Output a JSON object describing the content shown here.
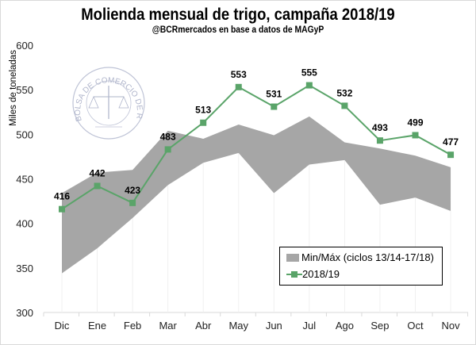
{
  "title": "Molienda mensual de trigo, campaña 2018/19",
  "subtitle": "@BCRmercados en base a datos de MAGyP",
  "logo_text": "BOLSA DE COMERCIO DE ROSARIO",
  "colors": {
    "band": "#a6a6a6",
    "line": "#5aa469",
    "marker": "#5aa469"
  },
  "chart_data": {
    "type": "line",
    "title": "Molienda mensual de trigo, campaña 2018/19",
    "subtitle": "@BCRmercados en base a datos de MAGyP",
    "xlabel": "",
    "ylabel": "Miles de toneladas",
    "ylim": [
      300,
      600
    ],
    "yticks": [
      300,
      350,
      400,
      450,
      500,
      550,
      600
    ],
    "grid": false,
    "legend_position": "bottom-right",
    "categories": [
      "Dic",
      "Ene",
      "Feb",
      "Mar",
      "Abr",
      "May",
      "Jun",
      "Jul",
      "Ago",
      "Sep",
      "Oct",
      "Nov"
    ],
    "series": [
      {
        "name": "Min/Máx (ciclos 13/14-17/18)",
        "type": "area-band",
        "min": [
          344,
          372,
          406,
          443,
          468,
          479,
          434,
          466,
          471,
          421,
          429,
          414
        ],
        "max": [
          434,
          457,
          460,
          504,
          495,
          511,
          499,
          520,
          491,
          484,
          476,
          463
        ]
      },
      {
        "name": "2018/19",
        "type": "line",
        "values": [
          416,
          442,
          423,
          483,
          513,
          553,
          531,
          555,
          532,
          493,
          499,
          477
        ]
      }
    ]
  }
}
